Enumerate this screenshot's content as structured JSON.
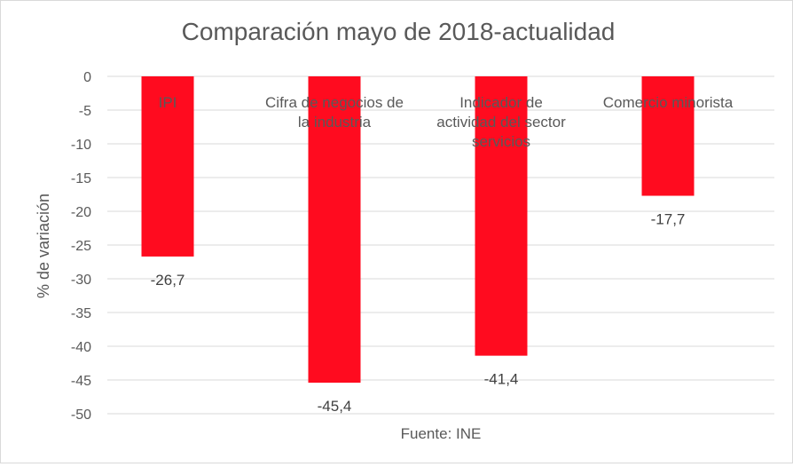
{
  "chart_data": {
    "type": "bar",
    "title": "Comparación mayo de 2018-actualidad",
    "ylabel": "% de variación",
    "xlabel": "Fuente: INE",
    "ylim": [
      -50,
      0
    ],
    "yticks": [
      0,
      -5,
      -10,
      -15,
      -20,
      -25,
      -30,
      -35,
      -40,
      -45,
      -50
    ],
    "ytick_labels": [
      "0",
      "-5",
      "-10",
      "-15",
      "-20",
      "-25",
      "-30",
      "-35",
      "-40",
      "-45",
      "-50"
    ],
    "grid": true,
    "categories": [
      [
        "IPI"
      ],
      [
        "Cifra de negocios de",
        "la industria"
      ],
      [
        "Indicador de",
        "actividad del sector",
        "servicios"
      ],
      [
        "Comercio minorista"
      ]
    ],
    "values": [
      -26.7,
      -45.4,
      -41.4,
      -17.7
    ],
    "data_labels": [
      "-26,7",
      "-45,4",
      "-41,4",
      "-17,7"
    ],
    "bar_color": "#ff0b1f"
  }
}
